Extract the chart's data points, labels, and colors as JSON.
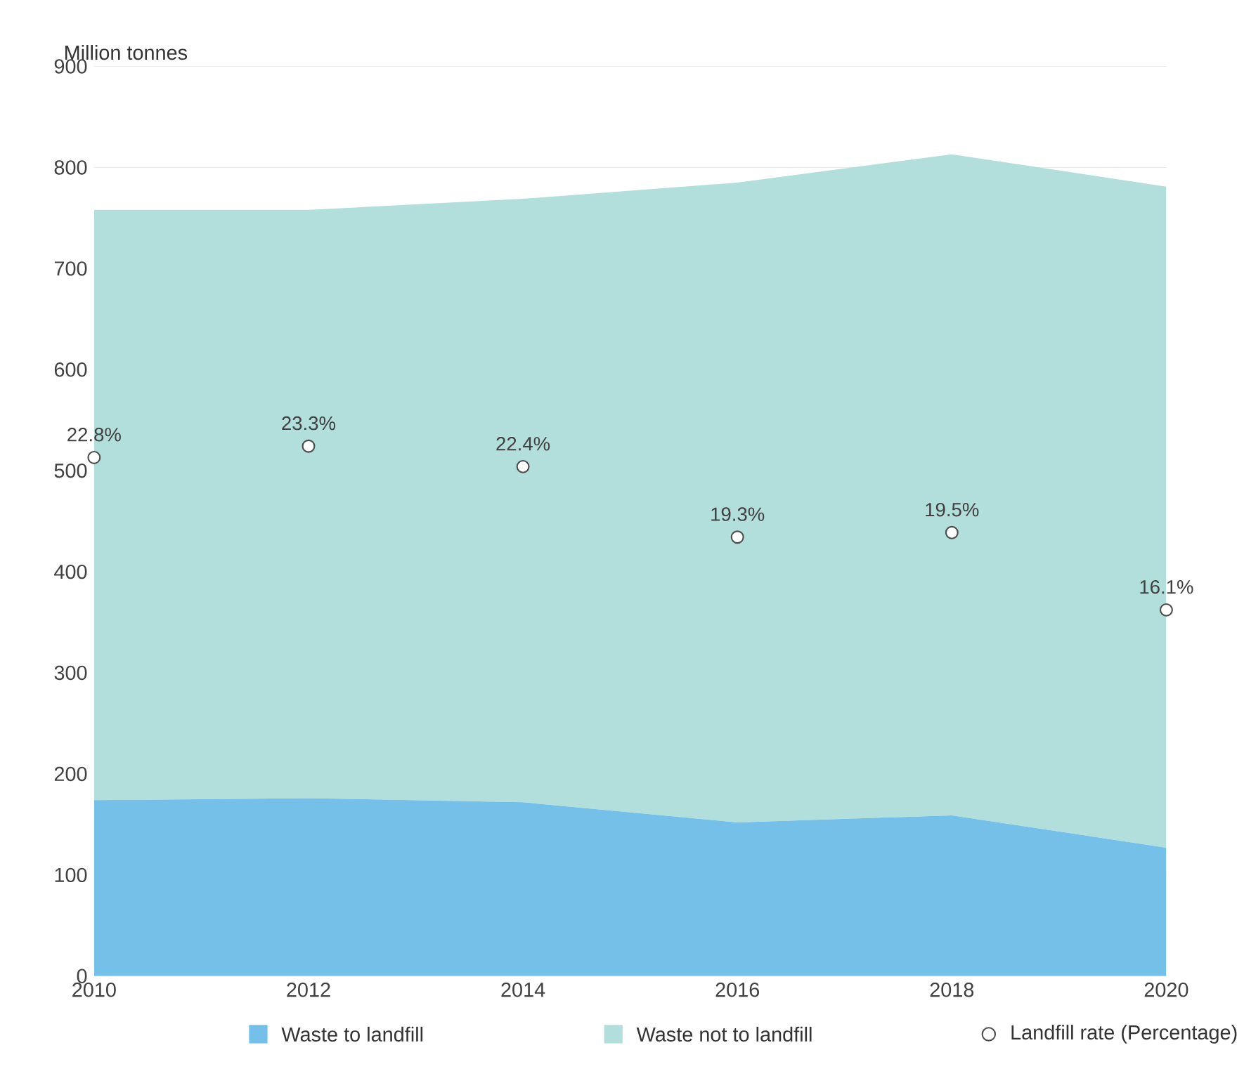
{
  "chart_data": {
    "type": "area",
    "ylabel": "Million tonnes",
    "x": [
      2010,
      2012,
      2014,
      2016,
      2018,
      2020
    ],
    "xlim": [
      2010,
      2020
    ],
    "xticks": [
      2010,
      2012,
      2014,
      2016,
      2018,
      2020
    ],
    "ylim": [
      0,
      900
    ],
    "yticks": [
      0,
      100,
      200,
      300,
      400,
      500,
      600,
      700,
      800,
      900
    ],
    "y2lim": [
      0,
      40
    ],
    "stacked": true,
    "grid": "y",
    "legend": "bottom",
    "series": [
      {
        "name": "Waste to landfill",
        "color": "#74c0e9",
        "values": [
          174,
          176,
          172,
          152,
          159,
          127
        ]
      },
      {
        "name": "Waste not to landfill",
        "color": "#b2dfdb",
        "values": [
          584,
          582,
          597,
          633,
          654,
          654
        ]
      },
      {
        "name": "Landfill rate (Percentage)",
        "type": "scatter",
        "axis": "y2",
        "marker": "circle",
        "color": "#ffffff",
        "values": [
          22.8,
          23.3,
          22.4,
          19.3,
          19.5,
          16.1
        ],
        "value_labels": [
          "22.8%",
          "23.3%",
          "22.4%",
          "19.3%",
          "19.5%",
          "16.1%"
        ]
      }
    ]
  }
}
